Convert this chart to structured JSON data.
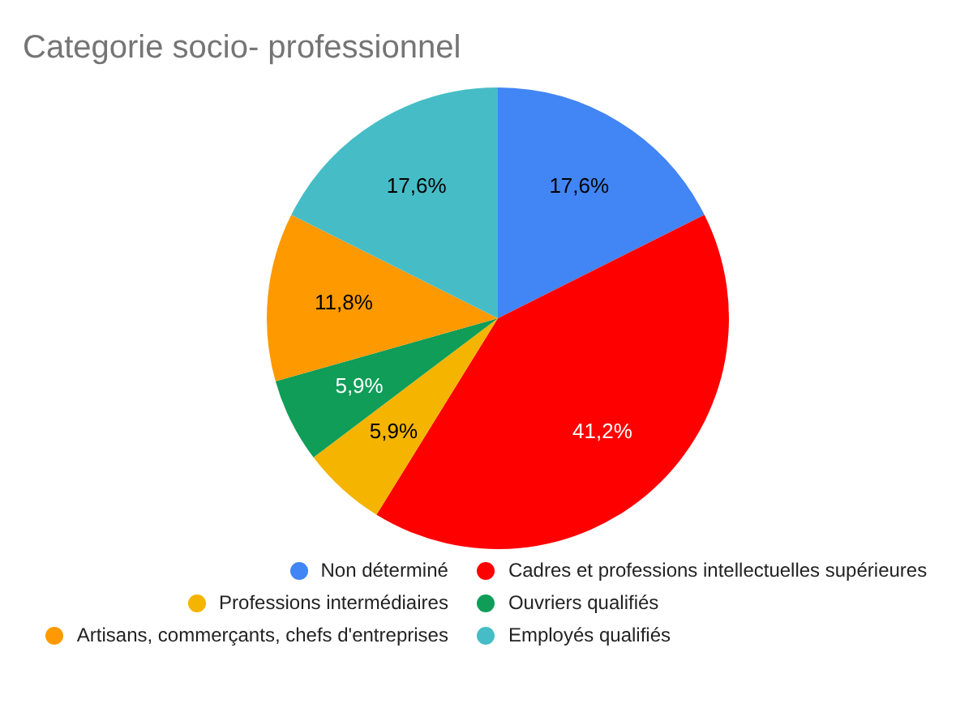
{
  "chart_data": {
    "type": "pie",
    "title": "Categorie socio- professionnel",
    "categories": [
      "Non déterminé",
      "Cadres et professions intellectuelles supérieures",
      "Professions intermédiaires",
      "Ouvriers qualifiés",
      "Artisans, commerçants, chefs d'entreprises",
      "Employés qualifiés"
    ],
    "values": [
      17.6,
      41.2,
      5.9,
      5.9,
      11.8,
      17.6
    ],
    "value_labels": [
      "17,6%",
      "41,2%",
      "5,9%",
      "5,9%",
      "11,8%",
      "17,6%"
    ],
    "colors": [
      "#4285f4",
      "#ff0000",
      "#f4b400",
      "#0f9d58",
      "#ff9900",
      "#46bdc6"
    ],
    "legend": "bottom"
  }
}
